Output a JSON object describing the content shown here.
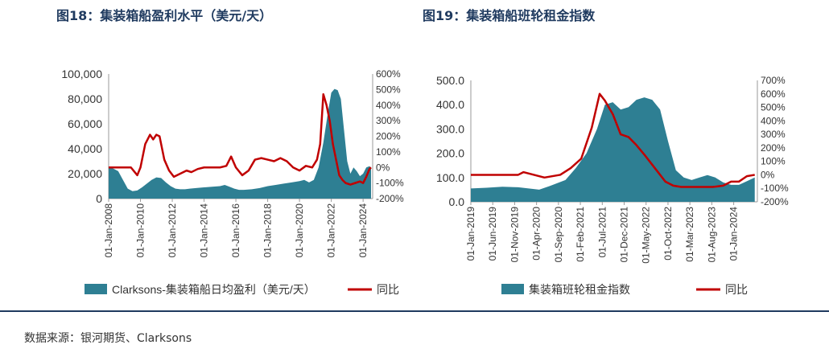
{
  "charts_header": {
    "left_title": "图18：集装箱船盈利水平（美元/天）",
    "right_title": "图19：集装箱船班轮租金指数"
  },
  "source": "数据来源：银河期货、Clarksons",
  "colors": {
    "area": "#2e7f93",
    "line": "#c00000",
    "title": "#1f3a5f"
  },
  "chart_data": [
    {
      "type": "area",
      "title": "图18：集装箱船盈利水平（美元/天）",
      "x_ticks": [
        "01-Jan-2008",
        "01-Jan-2010",
        "01-Jan-2012",
        "01-Jan-2014",
        "01-Jan-2016",
        "01-Jan-2018",
        "01-Jan-2020",
        "01-Jan-2022",
        "01-Jan-2024"
      ],
      "y_left": {
        "min": 0,
        "max": 100000,
        "ticks": [
          "0",
          "20,000",
          "40,000",
          "60,000",
          "80,000",
          "100,000"
        ]
      },
      "y_right": {
        "min": -200,
        "max": 600,
        "ticks": [
          "-200%",
          "-100%",
          "0%",
          "100%",
          "200%",
          "300%",
          "400%",
          "500%",
          "600%"
        ]
      },
      "legend": "bottom",
      "series": [
        {
          "name": "Clarksons-集装箱船日均盈利（美元/天）",
          "type": "area",
          "axis": "left",
          "x": [
            2008.0,
            2008.3,
            2008.6,
            2008.9,
            2009.2,
            2009.5,
            2009.8,
            2010.1,
            2010.4,
            2010.7,
            2011.0,
            2011.3,
            2011.6,
            2011.9,
            2012.2,
            2012.5,
            2012.8,
            2013.1,
            2013.5,
            2014.0,
            2014.5,
            2015.0,
            2015.3,
            2015.6,
            2015.9,
            2016.2,
            2016.5,
            2017.0,
            2017.5,
            2018.0,
            2018.5,
            2019.0,
            2019.5,
            2020.0,
            2020.3,
            2020.6,
            2020.9,
            2021.2,
            2021.5,
            2021.8,
            2022.0,
            2022.2,
            2022.4,
            2022.6,
            2022.8,
            2023.0,
            2023.2,
            2023.4,
            2023.6,
            2023.8,
            2024.0,
            2024.2,
            2024.4,
            2024.5
          ],
          "values": [
            25000,
            24000,
            22000,
            15000,
            8000,
            6000,
            6500,
            9000,
            12000,
            15000,
            17000,
            16500,
            13000,
            10000,
            8000,
            7500,
            7500,
            8000,
            8500,
            9000,
            9500,
            10000,
            11000,
            9500,
            8000,
            7000,
            7000,
            7500,
            8500,
            10000,
            11000,
            12000,
            13000,
            14000,
            15000,
            13000,
            15000,
            25000,
            45000,
            70000,
            85000,
            88000,
            87000,
            80000,
            55000,
            30000,
            20000,
            25000,
            22000,
            18000,
            20000,
            25000,
            26000,
            25000
          ]
        },
        {
          "name": "同比",
          "type": "line",
          "axis": "right",
          "x": [
            2008.0,
            2008.5,
            2009.0,
            2009.4,
            2009.8,
            2010.0,
            2010.3,
            2010.6,
            2010.8,
            2011.0,
            2011.2,
            2011.5,
            2011.8,
            2012.1,
            2012.5,
            2012.9,
            2013.2,
            2013.6,
            2014.0,
            2014.5,
            2015.0,
            2015.4,
            2015.7,
            2016.0,
            2016.4,
            2016.8,
            2017.2,
            2017.6,
            2018.0,
            2018.4,
            2018.8,
            2019.2,
            2019.6,
            2020.0,
            2020.4,
            2020.8,
            2021.1,
            2021.3,
            2021.5,
            2021.7,
            2021.9,
            2022.1,
            2022.3,
            2022.5,
            2022.7,
            2022.9,
            2023.2,
            2023.5,
            2023.8,
            2024.0,
            2024.2,
            2024.4,
            2024.5
          ],
          "values": [
            0,
            0,
            0,
            0,
            -50,
            0,
            150,
            210,
            180,
            210,
            200,
            50,
            -20,
            -60,
            -40,
            -20,
            -30,
            -10,
            0,
            0,
            0,
            10,
            70,
            0,
            -50,
            -20,
            50,
            60,
            50,
            40,
            60,
            40,
            0,
            -20,
            10,
            0,
            50,
            150,
            470,
            400,
            300,
            150,
            50,
            -50,
            -80,
            -100,
            -110,
            -100,
            -90,
            -100,
            -60,
            -10,
            0
          ]
        }
      ]
    },
    {
      "type": "area",
      "title": "图19：集装箱船班轮租金指数",
      "x_ticks": [
        "01-Jan-2019",
        "01-Jun-2019",
        "01-Nov-2019",
        "01-Apr-2020",
        "01-Sep-2020",
        "01-Feb-2021",
        "01-Jul-2021",
        "01-Dec-2021",
        "01-May-2022",
        "01-Oct-2022",
        "01-Mar-2023",
        "01-Aug-2023",
        "01-Jan-2024"
      ],
      "y_left": {
        "min": 0,
        "max": 500,
        "ticks": [
          "0.0",
          "100.0",
          "200.0",
          "300.0",
          "400.0",
          "500.0"
        ]
      },
      "y_right": {
        "min": -200,
        "max": 700,
        "ticks": [
          "-200%",
          "-100%",
          "0%",
          "100%",
          "200%",
          "300%",
          "400%",
          "500%",
          "600%",
          "700%"
        ]
      },
      "legend": "bottom",
      "series": [
        {
          "name": "集装箱班轮租金指数",
          "type": "area",
          "axis": "left",
          "x": [
            2019.0,
            2019.3,
            2019.6,
            2019.9,
            2020.1,
            2020.3,
            2020.5,
            2020.8,
            2021.0,
            2021.2,
            2021.4,
            2021.55,
            2021.7,
            2021.85,
            2022.0,
            2022.15,
            2022.3,
            2022.45,
            2022.6,
            2022.75,
            2022.9,
            2023.05,
            2023.2,
            2023.35,
            2023.5,
            2023.65,
            2023.8,
            2023.95,
            2024.1,
            2024.25,
            2024.4
          ],
          "values": [
            55,
            58,
            62,
            60,
            55,
            50,
            65,
            90,
            140,
            200,
            300,
            400,
            410,
            380,
            390,
            420,
            430,
            420,
            380,
            250,
            130,
            100,
            90,
            100,
            110,
            100,
            80,
            70,
            70,
            85,
            100
          ]
        },
        {
          "name": "同比",
          "type": "line",
          "axis": "right",
          "x": [
            2019.0,
            2019.3,
            2019.6,
            2019.9,
            2020.0,
            2020.2,
            2020.4,
            2020.7,
            2020.9,
            2021.1,
            2021.3,
            2021.45,
            2021.55,
            2021.7,
            2021.85,
            2022.0,
            2022.15,
            2022.3,
            2022.5,
            2022.7,
            2022.85,
            2023.0,
            2023.2,
            2023.4,
            2023.6,
            2023.8,
            2023.95,
            2024.1,
            2024.25,
            2024.4
          ],
          "values": [
            0,
            0,
            0,
            0,
            20,
            0,
            -20,
            0,
            50,
            120,
            350,
            600,
            550,
            450,
            300,
            280,
            220,
            150,
            50,
            -50,
            -80,
            -90,
            -90,
            -90,
            -90,
            -80,
            -50,
            -50,
            -10,
            0
          ]
        }
      ]
    }
  ]
}
